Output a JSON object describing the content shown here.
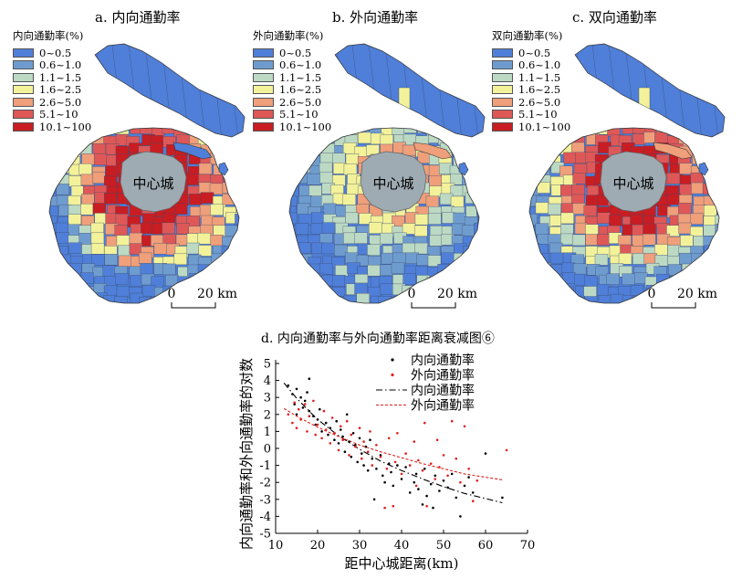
{
  "panels": [
    {
      "title": "a. 内向通勤率",
      "legend_title": "内向通勤率(%)"
    },
    {
      "title": "b. 外向通勤率",
      "legend_title": "外向通勤率(%)"
    },
    {
      "title": "c. 双向通勤率",
      "legend_title": "双向通勤率(%)"
    }
  ],
  "legend_classes": [
    {
      "label": "0~0.5",
      "color": "#4f7fd8"
    },
    {
      "label": "0.6~1.0",
      "color": "#6f9ccf"
    },
    {
      "label": "1.1~1.5",
      "color": "#bcd9c4"
    },
    {
      "label": "1.6~2.5",
      "color": "#f3f29a"
    },
    {
      "label": "2.6~5.0",
      "color": "#ef9f7a"
    },
    {
      "label": "5.1~10",
      "color": "#de5858"
    },
    {
      "label": "10.1~100",
      "color": "#c81d22"
    }
  ],
  "center_label": "中心城",
  "center_color": "#9eabb2",
  "scale_bar": {
    "start": "0",
    "end": "20 km"
  },
  "chart_title": "d. 内向通勤率与外向通勤率距离衰减图⑥",
  "chart_data": {
    "type": "scatter",
    "title": "d. 内向通勤率与外向通勤率距离衰减图⑥",
    "xlabel": "距中心城距离(km)",
    "ylabel": "内向通勤率和外向通勤率的对数",
    "xlim": [
      10,
      70
    ],
    "ylim": [
      -5,
      5
    ],
    "xticks": [
      10,
      20,
      30,
      40,
      50,
      60,
      70
    ],
    "yticks": [
      5,
      4,
      3,
      2,
      1,
      0,
      -1,
      -2,
      -3,
      -4,
      -5
    ],
    "legend_position": "top-right",
    "series": [
      {
        "name": "内向通勤率",
        "kind": "points",
        "color": "#000000",
        "points": [
          [
            13,
            3.7
          ],
          [
            14,
            3.2
          ],
          [
            14.5,
            2.6
          ],
          [
            15,
            3.5
          ],
          [
            15,
            2.0
          ],
          [
            16,
            3.0
          ],
          [
            16.5,
            2.4
          ],
          [
            17,
            2.8
          ],
          [
            17.5,
            3.3
          ],
          [
            18,
            4.1
          ],
          [
            18,
            2.2
          ],
          [
            19,
            1.9
          ],
          [
            19.5,
            1.4
          ],
          [
            20,
            1.7
          ],
          [
            20.5,
            2.3
          ],
          [
            21,
            1.0
          ],
          [
            22,
            1.5
          ],
          [
            22.5,
            0.8
          ],
          [
            23,
            1.2
          ],
          [
            24,
            0.5
          ],
          [
            24.5,
            1.6
          ],
          [
            25,
            0.3
          ],
          [
            25.5,
            1.1
          ],
          [
            26,
            0.7
          ],
          [
            26.5,
            -0.2
          ],
          [
            27,
            2.0
          ],
          [
            27.5,
            0.4
          ],
          [
            28,
            -0.5
          ],
          [
            28.5,
            0.9
          ],
          [
            29,
            0.2
          ],
          [
            29.5,
            -0.8
          ],
          [
            30,
            0.6
          ],
          [
            30.5,
            -0.3
          ],
          [
            31,
            -1.0
          ],
          [
            31.5,
            0.1
          ],
          [
            32,
            -1.3
          ],
          [
            32.5,
            0.5
          ],
          [
            33,
            -0.6
          ],
          [
            33.5,
            -3.0
          ],
          [
            34,
            -1.2
          ],
          [
            35,
            -0.4
          ],
          [
            35.5,
            -1.6
          ],
          [
            36,
            -2.0
          ],
          [
            37,
            -0.9
          ],
          [
            37.5,
            -1.4
          ],
          [
            38,
            -2.2
          ],
          [
            39,
            -1.0
          ],
          [
            40,
            -1.8
          ],
          [
            41,
            -1.1
          ],
          [
            42,
            -2.6
          ],
          [
            43,
            -2.0
          ],
          [
            43.5,
            -1.5
          ],
          [
            44,
            -2.4
          ],
          [
            45,
            -3.3
          ],
          [
            45.5,
            -1.2
          ],
          [
            46,
            -2.8
          ],
          [
            47,
            -2.1
          ],
          [
            47.5,
            -3.5
          ],
          [
            48,
            -1.6
          ],
          [
            49,
            -2.5
          ],
          [
            50,
            -1.9
          ],
          [
            51,
            -2.3
          ],
          [
            52,
            -1.5
          ],
          [
            53,
            -2.9
          ],
          [
            54,
            -4.0
          ],
          [
            55,
            -2.2
          ],
          [
            56,
            -1.7
          ],
          [
            57,
            -2.6
          ],
          [
            60,
            -0.3
          ],
          [
            64,
            -2.9
          ]
        ]
      },
      {
        "name": "外向通勤率",
        "kind": "points",
        "color": "#e0201c",
        "points": [
          [
            13,
            2.0
          ],
          [
            14,
            1.5
          ],
          [
            14.5,
            2.7
          ],
          [
            15,
            1.2
          ],
          [
            15.5,
            2.3
          ],
          [
            16,
            1.7
          ],
          [
            17,
            2.6
          ],
          [
            17.5,
            1.0
          ],
          [
            18,
            1.9
          ],
          [
            19,
            2.8
          ],
          [
            19.5,
            0.8
          ],
          [
            20,
            1.4
          ],
          [
            21,
            0.6
          ],
          [
            21.5,
            2.2
          ],
          [
            22,
            1.1
          ],
          [
            23,
            0.3
          ],
          [
            23.5,
            1.8
          ],
          [
            24,
            0.9
          ],
          [
            25,
            -0.1
          ],
          [
            25.5,
            1.3
          ],
          [
            26,
            0.5
          ],
          [
            27,
            1.6
          ],
          [
            27.5,
            -0.4
          ],
          [
            28,
            0.8
          ],
          [
            29,
            0.1
          ],
          [
            30,
            1.2
          ],
          [
            30.5,
            -0.6
          ],
          [
            31,
            0.4
          ],
          [
            32,
            -0.2
          ],
          [
            32.5,
            1.0
          ],
          [
            33,
            -1.0
          ],
          [
            34,
            0.2
          ],
          [
            35,
            -0.5
          ],
          [
            36,
            -3.5
          ],
          [
            36.5,
            -1.2
          ],
          [
            37,
            0.6
          ],
          [
            38,
            -3.4
          ],
          [
            38.5,
            -0.8
          ],
          [
            39,
            0.9
          ],
          [
            40,
            -1.5
          ],
          [
            41,
            -0.3
          ],
          [
            42,
            -1.0
          ],
          [
            43,
            0.4
          ],
          [
            43.5,
            -2.2
          ],
          [
            44,
            -0.7
          ],
          [
            45,
            -1.3
          ],
          [
            45.5,
            1.5
          ],
          [
            46,
            -3.4
          ],
          [
            47,
            -0.9
          ],
          [
            48,
            -1.8
          ],
          [
            48.5,
            0.5
          ],
          [
            49,
            -1.1
          ],
          [
            50,
            -0.4
          ],
          [
            51,
            -1.6
          ],
          [
            52,
            1.6
          ],
          [
            53,
            -0.6
          ],
          [
            54,
            -2.0
          ],
          [
            55,
            1.3
          ],
          [
            56,
            -1.2
          ],
          [
            57,
            -3.1
          ],
          [
            58,
            -1.9
          ],
          [
            65,
            -0.1
          ]
        ]
      },
      {
        "name": "内向通勤率",
        "kind": "fit-line",
        "color": "#000000",
        "style": "dash-dot",
        "points": [
          [
            12,
            3.85
          ],
          [
            15,
            2.95
          ],
          [
            20,
            1.7
          ],
          [
            25,
            0.75
          ],
          [
            30,
            -0.05
          ],
          [
            35,
            -0.75
          ],
          [
            40,
            -1.3
          ],
          [
            45,
            -1.8
          ],
          [
            50,
            -2.25
          ],
          [
            55,
            -2.65
          ],
          [
            60,
            -2.95
          ],
          [
            64,
            -3.2
          ]
        ]
      },
      {
        "name": "外向通勤率",
        "kind": "fit-line",
        "color": "#e0201c",
        "style": "dashed",
        "points": [
          [
            12,
            2.35
          ],
          [
            15,
            1.9
          ],
          [
            20,
            1.25
          ],
          [
            25,
            0.7
          ],
          [
            30,
            0.2
          ],
          [
            35,
            -0.2
          ],
          [
            40,
            -0.55
          ],
          [
            45,
            -0.9
          ],
          [
            50,
            -1.2
          ],
          [
            55,
            -1.5
          ],
          [
            60,
            -1.7
          ],
          [
            64,
            -1.85
          ]
        ]
      }
    ]
  }
}
